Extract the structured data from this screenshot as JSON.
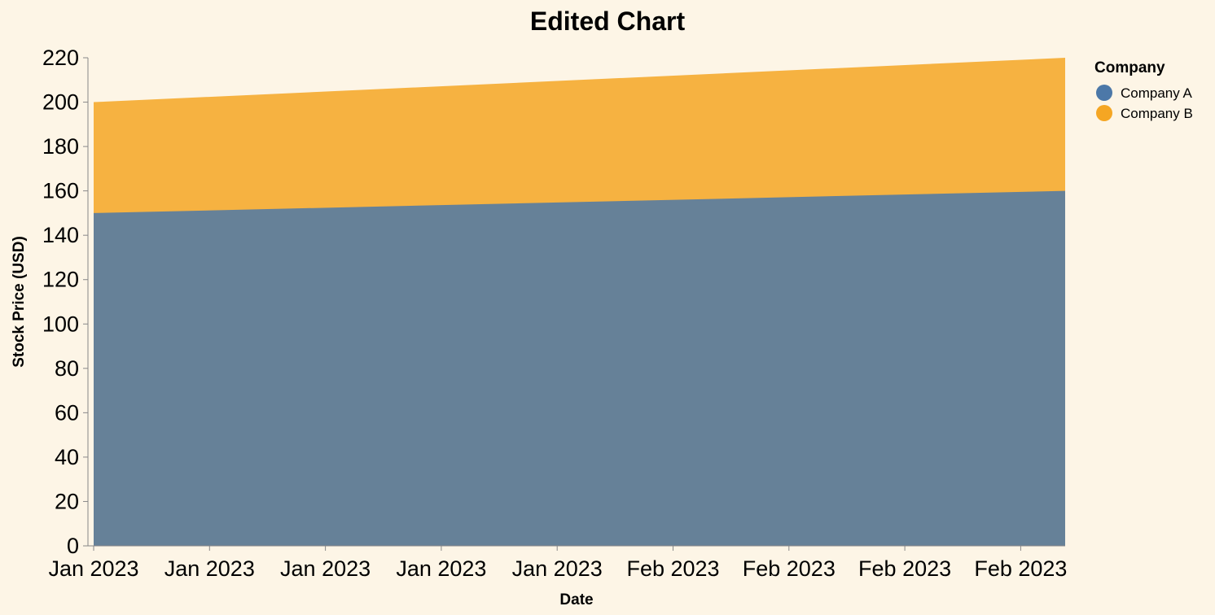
{
  "chart_data": {
    "type": "area",
    "title": "Edited Chart",
    "xlabel": "Date",
    "ylabel": "Stock Price (USD)",
    "ylim": [
      0,
      220
    ],
    "y_ticks": [
      0,
      20,
      40,
      60,
      80,
      100,
      120,
      140,
      160,
      180,
      200,
      220
    ],
    "x_tick_labels": [
      "Jan 2023",
      "Jan 2023",
      "Jan 2023",
      "Jan 2023",
      "Jan 2023",
      "Feb 2023",
      "Feb 2023",
      "Feb 2023",
      "Feb 2023"
    ],
    "x": [
      "2023-01-01",
      "2023-02-27"
    ],
    "stacked": false,
    "series": [
      {
        "name": "Company A",
        "color": "#4c78a8",
        "values": [
          150,
          160
        ]
      },
      {
        "name": "Company B",
        "color": "#f5a623",
        "values": [
          200,
          220
        ]
      }
    ],
    "legend": {
      "title": "Company",
      "position": "top-right"
    },
    "grid": false,
    "background": "#fdf5e6"
  }
}
